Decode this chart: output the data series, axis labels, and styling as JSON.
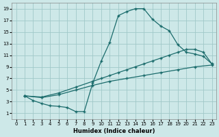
{
  "xlabel": "Humidex (Indice chaleur)",
  "bg_color": "#cde8e8",
  "grid_color": "#a0c8c8",
  "line_color": "#1a6b6b",
  "xlim": [
    -0.5,
    23.5
  ],
  "ylim": [
    0,
    20
  ],
  "xticks": [
    0,
    1,
    2,
    3,
    4,
    5,
    6,
    7,
    8,
    9,
    10,
    11,
    12,
    13,
    14,
    15,
    16,
    17,
    18,
    19,
    20,
    21,
    22,
    23
  ],
  "yticks": [
    1,
    3,
    5,
    7,
    9,
    11,
    13,
    15,
    17,
    19
  ],
  "curve1_x": [
    1,
    2,
    3,
    4,
    5,
    6,
    7,
    8,
    9,
    10,
    11,
    12,
    13,
    14,
    15,
    16,
    17,
    18,
    19,
    20,
    21,
    22,
    23
  ],
  "curve1_y": [
    4.0,
    3.2,
    2.7,
    2.3,
    2.2,
    2.0,
    1.3,
    1.3,
    6.2,
    10.0,
    13.2,
    17.8,
    18.5,
    19.0,
    19.0,
    17.2,
    16.0,
    15.2,
    12.8,
    11.5,
    11.2,
    10.8,
    9.5
  ],
  "curve2_x": [
    1,
    3,
    5,
    7,
    9,
    10,
    11,
    12,
    13,
    14,
    15,
    16,
    17,
    18,
    19,
    20,
    21,
    22,
    23
  ],
  "curve2_y": [
    4.0,
    3.8,
    4.5,
    5.5,
    6.5,
    7.0,
    7.5,
    8.0,
    8.5,
    9.0,
    9.5,
    10.0,
    10.5,
    11.0,
    11.5,
    12.0,
    12.0,
    11.5,
    9.5
  ],
  "curve3_x": [
    1,
    3,
    5,
    7,
    9,
    11,
    13,
    15,
    17,
    19,
    21,
    23
  ],
  "curve3_y": [
    4.0,
    3.7,
    4.2,
    5.0,
    5.8,
    6.5,
    7.0,
    7.5,
    8.0,
    8.5,
    9.0,
    9.3
  ]
}
